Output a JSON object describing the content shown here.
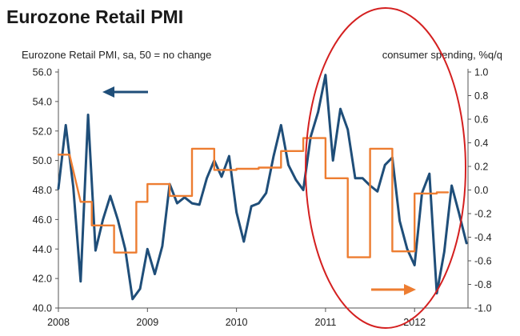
{
  "chart_data": {
    "type": "line",
    "title": "Eurozone Retail PMI",
    "left_axis_label": "Eurozone Retail PMI, sa, 50 = no change",
    "right_axis_label": "consumer spending, %q/q",
    "x_tick_labels": [
      "2008",
      "2009",
      "2010",
      "2011",
      "2012"
    ],
    "x_range": [
      2008.0,
      2012.6
    ],
    "left_ylim": [
      40.0,
      56.0
    ],
    "left_ticks": [
      "40.0",
      "42.0",
      "44.0",
      "46.0",
      "48.0",
      "50.0",
      "52.0",
      "54.0",
      "56.0"
    ],
    "right_ylim": [
      -1.0,
      1.0
    ],
    "right_ticks": [
      "-1.0",
      "-0.8",
      "-0.6",
      "-0.4",
      "-0.2",
      "0.0",
      "0.2",
      "0.4",
      "0.6",
      "0.8",
      "1.0"
    ],
    "grid": false,
    "series": [
      {
        "axis": "left",
        "color": "#1f4e79",
        "x": [
          2008.0,
          2008.083,
          2008.167,
          2008.25,
          2008.333,
          2008.417,
          2008.5,
          2008.583,
          2008.667,
          2008.75,
          2008.833,
          2008.917,
          2009.0,
          2009.083,
          2009.167,
          2009.25,
          2009.333,
          2009.417,
          2009.5,
          2009.583,
          2009.667,
          2009.75,
          2009.833,
          2009.917,
          2010.0,
          2010.083,
          2010.167,
          2010.25,
          2010.333,
          2010.417,
          2010.5,
          2010.583,
          2010.667,
          2010.75,
          2010.833,
          2010.917,
          2011.0,
          2011.083,
          2011.167,
          2011.25,
          2011.333,
          2011.417,
          2011.5,
          2011.583,
          2011.667,
          2011.75,
          2011.833,
          2011.917,
          2012.0,
          2012.083,
          2012.167,
          2012.25,
          2012.333,
          2012.417,
          2012.5,
          2012.583
        ],
        "values": [
          48.1,
          52.4,
          48.2,
          41.8,
          53.1,
          43.9,
          46.0,
          47.6,
          46.0,
          44.0,
          40.6,
          41.3,
          44.0,
          42.3,
          44.2,
          48.4,
          47.1,
          47.5,
          47.1,
          47.0,
          48.8,
          50.0,
          48.9,
          50.3,
          46.5,
          44.5,
          46.9,
          47.1,
          47.8,
          50.3,
          52.4,
          49.7,
          48.7,
          48.0,
          51.6,
          53.3,
          55.8,
          50.0,
          53.5,
          52.1,
          48.8,
          48.8,
          48.3,
          47.9,
          49.7,
          50.2,
          45.9,
          44.0,
          42.9,
          47.8,
          49.1,
          41.0,
          43.8,
          48.3,
          46.4,
          44.4
        ]
      },
      {
        "axis": "right",
        "color": "#ed7d31",
        "x": [
          2008.0,
          2008.125,
          2008.25,
          2008.375,
          2008.375,
          2008.625,
          2008.625,
          2008.875,
          2008.875,
          2009.0,
          2009.0,
          2009.25,
          2009.25,
          2009.5,
          2009.5,
          2009.75,
          2009.75,
          2010.0,
          2010.0,
          2010.25,
          2010.25,
          2010.5,
          2010.5,
          2010.75,
          2010.75,
          2011.0,
          2011.0,
          2011.25,
          2011.25,
          2011.5,
          2011.5,
          2011.75,
          2011.75,
          2012.0,
          2012.0,
          2012.25,
          2012.25,
          2012.375
        ],
        "values": [
          0.3,
          0.3,
          -0.1,
          -0.1,
          -0.3,
          -0.3,
          -0.53,
          -0.53,
          -0.1,
          -0.1,
          0.05,
          0.05,
          -0.05,
          -0.05,
          0.35,
          0.35,
          0.17,
          0.17,
          0.18,
          0.18,
          0.19,
          0.19,
          0.33,
          0.33,
          0.44,
          0.44,
          0.1,
          0.1,
          -0.57,
          -0.57,
          0.35,
          0.35,
          -0.52,
          -0.52,
          -0.03,
          -0.03,
          -0.02,
          -0.02
        ]
      }
    ],
    "annotations": {
      "left_arrow_color": "#1f4e79",
      "right_arrow_color": "#ed7d31",
      "highlight_ellipse_color": "#d42020"
    }
  }
}
